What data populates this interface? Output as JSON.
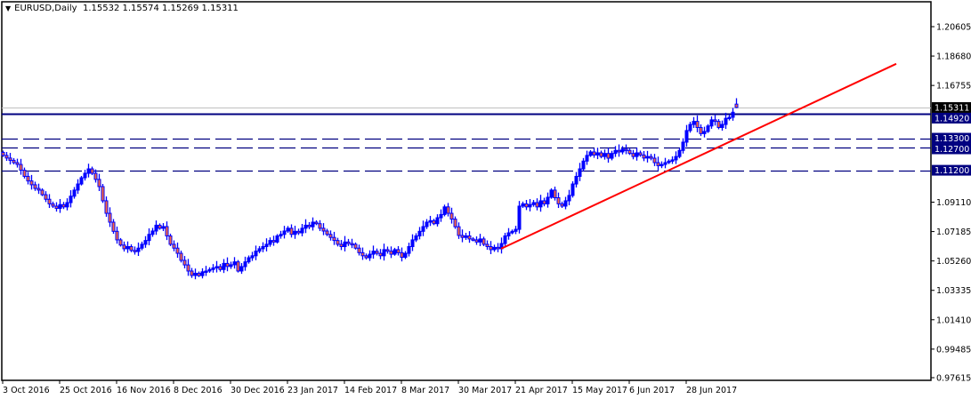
{
  "header": {
    "symbol": "EURUSD,Daily",
    "ohlc": "1.15532 1.15574 1.15269 1.15311"
  },
  "colors": {
    "candle_outline": "#0000ff",
    "bear_fill": "#ff6a3c",
    "hline": "#000080",
    "trendline": "#ff0000",
    "bidline": "#c0c0c0",
    "label_bg": "#000080"
  },
  "chart_data": {
    "type": "candlestick",
    "symbol": "EURUSD",
    "timeframe": "Daily",
    "ylim": [
      0.97615,
      1.20605
    ],
    "y_ticks": [
      "1.20605",
      "1.18680",
      "1.16755",
      "1.09110",
      "1.07185",
      "1.05260",
      "1.03335",
      "1.01410",
      "0.99485",
      "0.97615"
    ],
    "x_ticks": [
      "3 Oct 2016",
      "25 Oct 2016",
      "16 Nov 2016",
      "8 Dec 2016",
      "30 Dec 2016",
      "23 Jan 2017",
      "14 Feb 2017",
      "8 Mar 2017",
      "30 Mar 2017",
      "21 Apr 2017",
      "15 May 2017",
      "6 Jun 2017",
      "28 Jun 2017"
    ],
    "x_tick_every_bars": 16,
    "last_bar": {
      "open": 1.15532,
      "high": 1.15574,
      "low": 1.15269,
      "close": 1.15311
    },
    "closes": [
      1.1217,
      1.12,
      1.1185,
      1.117,
      1.1158,
      1.112,
      1.108,
      1.105,
      1.1025,
      1.1001,
      1.099,
      1.096,
      1.093,
      1.09,
      1.0885,
      1.087,
      1.0895,
      1.088,
      1.0908,
      1.095,
      1.099,
      1.103,
      1.1071,
      1.11,
      1.1129,
      1.11,
      1.106,
      1.1013,
      1.092,
      1.0838,
      1.078,
      1.072,
      1.0664,
      1.063,
      1.0606,
      1.062,
      1.0595,
      1.0588,
      1.061,
      1.0635,
      1.066,
      1.07,
      1.0722,
      1.076,
      1.074,
      1.0751,
      1.069,
      1.0635,
      1.061,
      1.0576,
      1.053,
      1.05,
      1.046,
      1.0431,
      1.0445,
      1.043,
      1.0455,
      1.046,
      1.047,
      1.048,
      1.0489,
      1.047,
      1.051,
      1.049,
      1.0501,
      1.052,
      1.046,
      1.0489,
      1.052,
      1.0547,
      1.056,
      1.059,
      1.0606,
      1.062,
      1.0635,
      1.066,
      1.065,
      1.069,
      1.07,
      1.0722,
      1.074,
      1.07,
      1.072,
      1.071,
      1.074,
      1.076,
      1.075,
      1.078,
      1.077,
      1.074,
      1.0722,
      1.07,
      1.068,
      1.066,
      1.0635,
      1.062,
      1.065,
      1.064,
      1.0635,
      1.061,
      1.058,
      1.056,
      1.0547,
      1.057,
      1.059,
      1.0576,
      1.056,
      1.06,
      1.059,
      1.057,
      1.06,
      1.058,
      1.055,
      1.0576,
      1.062,
      1.0664,
      1.069,
      1.072,
      1.0751,
      1.078,
      1.079,
      1.077,
      1.0809,
      1.083,
      1.088,
      1.0838,
      1.08,
      1.075,
      1.0693,
      1.068,
      1.069,
      1.067,
      1.0664,
      1.065,
      1.067,
      1.0635,
      1.062,
      1.06,
      1.0615,
      1.0606,
      1.064,
      1.069,
      1.071,
      1.072,
      1.0733,
      1.0885,
      1.09,
      1.088,
      1.0895,
      1.0908,
      1.088,
      1.092,
      1.09,
      1.0943,
      1.099,
      1.094,
      1.09,
      1.0885,
      1.092,
      1.0955,
      1.103,
      1.108,
      1.1129,
      1.118,
      1.1217,
      1.124,
      1.122,
      1.1234,
      1.121,
      1.123,
      1.1199,
      1.123,
      1.125,
      1.124,
      1.1258,
      1.125,
      1.123,
      1.121,
      1.1234,
      1.122,
      1.12,
      1.121,
      1.1199,
      1.117,
      1.115,
      1.1158,
      1.117,
      1.118,
      1.1188,
      1.121,
      1.125,
      1.1304,
      1.138,
      1.142,
      1.144,
      1.14,
      1.136,
      1.1374,
      1.141,
      1.145,
      1.144,
      1.14,
      1.142,
      1.146,
      1.1467,
      1.15,
      1.1553
    ],
    "horizontal_levels": [
      {
        "price": 1.1492,
        "label": "1.14920",
        "style": "solid"
      },
      {
        "price": 1.133,
        "label": "1.13300",
        "style": "dashed"
      },
      {
        "price": 1.127,
        "label": "1.12700",
        "style": "dashed"
      },
      {
        "price": 1.112,
        "label": "1.11200",
        "style": "dashed"
      }
    ],
    "bid_line": {
      "price": 1.15311,
      "label": "1.15311"
    },
    "trendline": {
      "start_date": "10 Apr 2017",
      "start_price": 1.0606,
      "end_price": 1.1817
    }
  }
}
